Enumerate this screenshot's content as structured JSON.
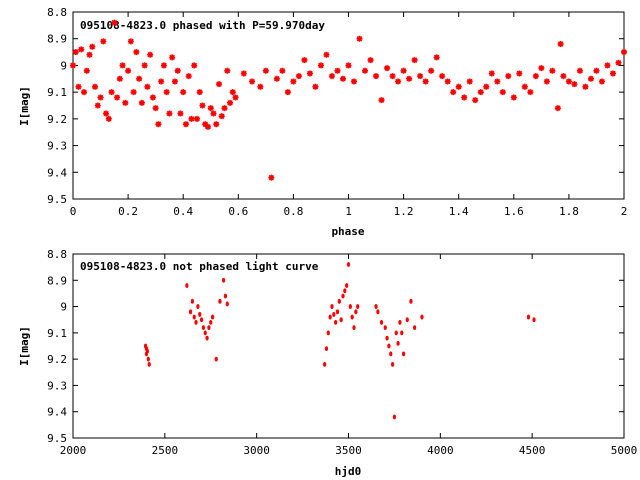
{
  "chart_data": [
    {
      "type": "scatter",
      "title": "095108-4823.0 phased with P=59.970day",
      "xlabel": "phase",
      "ylabel": "I[mag]",
      "xlim": [
        0,
        2
      ],
      "ylim": [
        8.8,
        9.5
      ],
      "y_inverted": true,
      "xticks": [
        "0",
        "0.2",
        "0.4",
        "0.6",
        "0.8",
        "1",
        "1.2",
        "1.4",
        "1.6",
        "1.8",
        "2"
      ],
      "yticks": [
        "8.8",
        "8.9",
        "9",
        "9.1",
        "9.2",
        "9.3",
        "9.4",
        "9.5"
      ],
      "marker_color": "#ff0000",
      "points": [
        [
          0.0,
          9.0
        ],
        [
          0.01,
          8.95
        ],
        [
          0.02,
          9.08
        ],
        [
          0.03,
          8.94
        ],
        [
          0.04,
          9.1
        ],
        [
          0.05,
          9.02
        ],
        [
          0.06,
          8.96
        ],
        [
          0.07,
          8.93
        ],
        [
          0.08,
          9.08
        ],
        [
          0.09,
          9.15
        ],
        [
          0.1,
          9.12
        ],
        [
          0.11,
          8.91
        ],
        [
          0.12,
          9.18
        ],
        [
          0.13,
          9.2
        ],
        [
          0.14,
          9.1
        ],
        [
          0.15,
          8.84
        ],
        [
          0.16,
          9.12
        ],
        [
          0.17,
          9.05
        ],
        [
          0.18,
          9.0
        ],
        [
          0.19,
          9.14
        ],
        [
          0.2,
          9.02
        ],
        [
          0.21,
          8.91
        ],
        [
          0.22,
          9.1
        ],
        [
          0.23,
          8.95
        ],
        [
          0.24,
          9.05
        ],
        [
          0.25,
          9.14
        ],
        [
          0.26,
          9.0
        ],
        [
          0.27,
          9.08
        ],
        [
          0.28,
          8.96
        ],
        [
          0.29,
          9.12
        ],
        [
          0.3,
          9.16
        ],
        [
          0.31,
          9.22
        ],
        [
          0.32,
          9.06
        ],
        [
          0.33,
          9.0
        ],
        [
          0.34,
          9.1
        ],
        [
          0.35,
          9.18
        ],
        [
          0.36,
          8.97
        ],
        [
          0.37,
          9.06
        ],
        [
          0.38,
          9.02
        ],
        [
          0.39,
          9.18
        ],
        [
          0.4,
          9.1
        ],
        [
          0.41,
          9.22
        ],
        [
          0.42,
          9.04
        ],
        [
          0.43,
          9.2
        ],
        [
          0.44,
          9.0
        ],
        [
          0.45,
          9.2
        ],
        [
          0.46,
          9.1
        ],
        [
          0.47,
          9.15
        ],
        [
          0.48,
          9.22
        ],
        [
          0.49,
          9.23
        ],
        [
          0.5,
          9.16
        ],
        [
          0.51,
          9.18
        ],
        [
          0.52,
          9.22
        ],
        [
          0.53,
          9.07
        ],
        [
          0.54,
          9.19
        ],
        [
          0.55,
          9.16
        ],
        [
          0.56,
          9.02
        ],
        [
          0.57,
          9.14
        ],
        [
          0.58,
          9.1
        ],
        [
          0.59,
          9.12
        ],
        [
          0.62,
          9.03
        ],
        [
          0.65,
          9.06
        ],
        [
          0.68,
          9.08
        ],
        [
          0.7,
          9.02
        ],
        [
          0.72,
          9.42
        ],
        [
          0.74,
          9.05
        ],
        [
          0.76,
          9.02
        ],
        [
          0.78,
          9.1
        ],
        [
          0.8,
          9.06
        ],
        [
          0.82,
          9.04
        ],
        [
          0.84,
          8.98
        ],
        [
          0.86,
          9.03
        ],
        [
          0.88,
          9.08
        ],
        [
          0.9,
          9.0
        ],
        [
          0.92,
          8.96
        ],
        [
          0.94,
          9.04
        ],
        [
          0.96,
          9.02
        ],
        [
          0.98,
          9.05
        ],
        [
          1.0,
          9.0
        ],
        [
          1.02,
          9.06
        ],
        [
          1.04,
          8.9
        ],
        [
          1.06,
          9.02
        ],
        [
          1.08,
          8.98
        ],
        [
          1.1,
          9.04
        ],
        [
          1.12,
          9.13
        ],
        [
          1.14,
          9.01
        ],
        [
          1.16,
          9.04
        ],
        [
          1.18,
          9.06
        ],
        [
          1.2,
          9.02
        ],
        [
          1.22,
          9.05
        ],
        [
          1.24,
          8.98
        ],
        [
          1.26,
          9.04
        ],
        [
          1.28,
          9.06
        ],
        [
          1.3,
          9.02
        ],
        [
          1.32,
          8.97
        ],
        [
          1.34,
          9.04
        ],
        [
          1.36,
          9.06
        ],
        [
          1.38,
          9.1
        ],
        [
          1.4,
          9.08
        ],
        [
          1.42,
          9.12
        ],
        [
          1.44,
          9.06
        ],
        [
          1.46,
          9.13
        ],
        [
          1.48,
          9.1
        ],
        [
          1.5,
          9.08
        ],
        [
          1.52,
          9.03
        ],
        [
          1.54,
          9.06
        ],
        [
          1.56,
          9.1
        ],
        [
          1.58,
          9.04
        ],
        [
          1.6,
          9.12
        ],
        [
          1.62,
          9.03
        ],
        [
          1.64,
          9.08
        ],
        [
          1.66,
          9.1
        ],
        [
          1.68,
          9.04
        ],
        [
          1.7,
          9.01
        ],
        [
          1.72,
          9.06
        ],
        [
          1.74,
          9.02
        ],
        [
          1.76,
          9.16
        ],
        [
          1.77,
          8.92
        ],
        [
          1.78,
          9.04
        ],
        [
          1.8,
          9.06
        ],
        [
          1.82,
          9.07
        ],
        [
          1.84,
          9.02
        ],
        [
          1.86,
          9.08
        ],
        [
          1.88,
          9.05
        ],
        [
          1.9,
          9.02
        ],
        [
          1.92,
          9.06
        ],
        [
          1.94,
          9.0
        ],
        [
          1.96,
          9.03
        ],
        [
          1.98,
          8.99
        ],
        [
          2.0,
          8.95
        ]
      ]
    },
    {
      "type": "scatter",
      "title": "095108-4823.0 not phased light curve",
      "xlabel": "hjd0",
      "ylabel": "I[mag]",
      "xlim": [
        2000,
        5000
      ],
      "ylim": [
        8.8,
        9.5
      ],
      "y_inverted": true,
      "xticks": [
        "2000",
        "2500",
        "3000",
        "3500",
        "4000",
        "4500",
        "5000"
      ],
      "yticks": [
        "8.8",
        "8.9",
        "9",
        "9.1",
        "9.2",
        "9.3",
        "9.4",
        "9.5"
      ],
      "marker_color": "#ff0000",
      "points": [
        [
          2395,
          9.15
        ],
        [
          2400,
          9.18
        ],
        [
          2405,
          9.17
        ],
        [
          2410,
          9.2
        ],
        [
          2415,
          9.22
        ],
        [
          2400,
          9.16
        ],
        [
          2620,
          8.92
        ],
        [
          2640,
          9.02
        ],
        [
          2650,
          8.98
        ],
        [
          2660,
          9.04
        ],
        [
          2670,
          9.06
        ],
        [
          2680,
          9.0
        ],
        [
          2690,
          9.03
        ],
        [
          2700,
          9.05
        ],
        [
          2710,
          9.08
        ],
        [
          2720,
          9.1
        ],
        [
          2730,
          9.12
        ],
        [
          2740,
          9.08
        ],
        [
          2750,
          9.06
        ],
        [
          2760,
          9.04
        ],
        [
          2780,
          9.2
        ],
        [
          2800,
          8.98
        ],
        [
          2820,
          8.9
        ],
        [
          2830,
          8.96
        ],
        [
          2840,
          8.99
        ],
        [
          3370,
          9.22
        ],
        [
          3380,
          9.16
        ],
        [
          3390,
          9.1
        ],
        [
          3400,
          9.04
        ],
        [
          3410,
          9.0
        ],
        [
          3420,
          9.03
        ],
        [
          3430,
          9.06
        ],
        [
          3440,
          9.02
        ],
        [
          3450,
          8.98
        ],
        [
          3460,
          9.05
        ],
        [
          3470,
          8.96
        ],
        [
          3480,
          8.94
        ],
        [
          3490,
          8.92
        ],
        [
          3500,
          8.84
        ],
        [
          3510,
          9.0
        ],
        [
          3520,
          9.04
        ],
        [
          3530,
          9.08
        ],
        [
          3540,
          9.02
        ],
        [
          3550,
          9.0
        ],
        [
          3650,
          9.0
        ],
        [
          3660,
          9.02
        ],
        [
          3680,
          9.06
        ],
        [
          3700,
          9.08
        ],
        [
          3710,
          9.12
        ],
        [
          3720,
          9.15
        ],
        [
          3730,
          9.18
        ],
        [
          3740,
          9.22
        ],
        [
          3750,
          9.42
        ],
        [
          3760,
          9.1
        ],
        [
          3770,
          9.14
        ],
        [
          3780,
          9.06
        ],
        [
          3790,
          9.1
        ],
        [
          3800,
          9.18
        ],
        [
          3820,
          9.05
        ],
        [
          3840,
          8.98
        ],
        [
          3860,
          9.08
        ],
        [
          3900,
          9.04
        ],
        [
          4480,
          9.04
        ],
        [
          4510,
          9.05
        ]
      ]
    }
  ]
}
